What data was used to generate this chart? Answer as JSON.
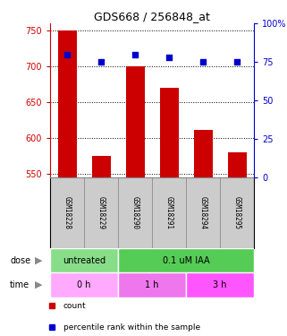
{
  "title": "GDS668 / 256848_at",
  "samples": [
    "GSM18228",
    "GSM18229",
    "GSM18290",
    "GSM18291",
    "GSM18294",
    "GSM18295"
  ],
  "counts": [
    750,
    575,
    700,
    670,
    612,
    580
  ],
  "percentiles": [
    80,
    75,
    80,
    78,
    75,
    75
  ],
  "ylim_left": [
    545,
    760
  ],
  "ylim_right": [
    0,
    100
  ],
  "yticks_left": [
    550,
    600,
    650,
    700,
    750
  ],
  "yticks_right": [
    0,
    25,
    50,
    75,
    100
  ],
  "ytick_right_labels": [
    "0",
    "25",
    "50",
    "75",
    "100%"
  ],
  "bar_color": "#cc0000",
  "dot_color": "#0000cc",
  "dose_groups": [
    {
      "label": "untreated",
      "span": [
        0,
        2
      ],
      "color": "#88dd88"
    },
    {
      "label": "0.1 uM IAA",
      "span": [
        2,
        6
      ],
      "color": "#55cc55"
    }
  ],
  "time_groups": [
    {
      "label": "0 h",
      "span": [
        0,
        2
      ],
      "color": "#ffaaff"
    },
    {
      "label": "1 h",
      "span": [
        2,
        4
      ],
      "color": "#ee77ee"
    },
    {
      "label": "3 h",
      "span": [
        4,
        6
      ],
      "color": "#ff55ff"
    }
  ],
  "legend_items": [
    {
      "label": "count",
      "color": "#cc0000"
    },
    {
      "label": "percentile rank within the sample",
      "color": "#0000cc"
    }
  ],
  "sample_box_color": "#cccccc",
  "sample_box_edge": "#888888"
}
